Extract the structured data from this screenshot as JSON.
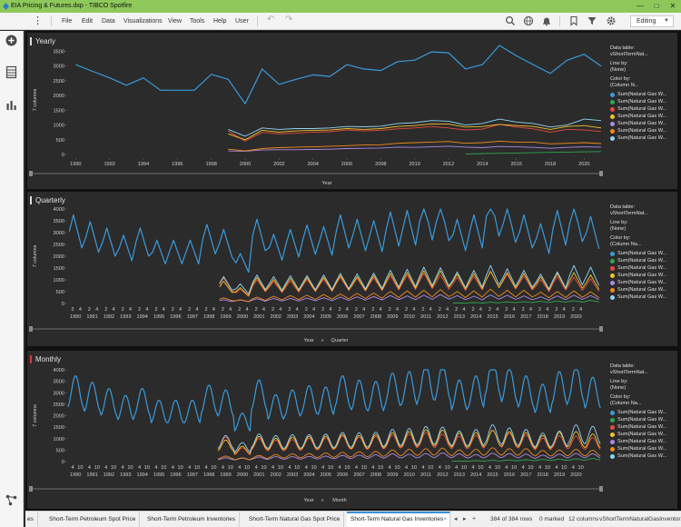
{
  "window": {
    "title": "EIA Pricing & Futures.dxp - TIBCO Spotfire",
    "controls": [
      "—",
      "□",
      "✕"
    ]
  },
  "menubar": {
    "items": [
      "File",
      "Edit",
      "Data",
      "Visualizations",
      "View",
      "Tools",
      "Help",
      "User"
    ],
    "mode": "Editing"
  },
  "colors": {
    "accent": "#3a8fd6",
    "titlebar": "#8ec85a",
    "panel_bg": "#2b2b2b",
    "series": [
      "#3a9bdc",
      "#2ea84f",
      "#e84a3a",
      "#f3c02c",
      "#a98be6",
      "#f08a1c",
      "#8dd5f5"
    ]
  },
  "legend": {
    "data_table_label": "Data table:",
    "data_table_value": "vShortTermNat...",
    "line_by_label": "Line by:",
    "line_by_value": "(None)",
    "color_by_label": "Color by:",
    "color_by_value_yearly": "(Column N...",
    "color_by_value_other": "(Column Na...",
    "series_label": "Sum(Natural Gas W..."
  },
  "panels": {
    "yearly": {
      "title": "Yearly",
      "y_axis_label": "7 columns",
      "x_axis_label": "Year"
    },
    "quarterly": {
      "title": "Quarterly",
      "y_axis_label": "7 columns",
      "x_axis_label_1": "Year",
      "x_axis_sep": "»",
      "x_axis_label_2": "Quarter"
    },
    "monthly": {
      "title": "Monthly",
      "y_axis_label": "7 columns",
      "x_axis_label_1": "Year",
      "x_axis_sep": "»",
      "x_axis_label_2": "Month"
    }
  },
  "tabs": {
    "items": [
      "es",
      "Short-Term Petroleum Spot Price",
      "Short-Term Petroleum Inventories",
      "Short-Term Natural Gas Spot Price",
      "Short-Term Natural Gas Inventories"
    ],
    "active_close": "×",
    "status_rows": "384 of 384 rows",
    "status_marked": "0 marked",
    "status_columns": "12 columns",
    "status_table": "vShortTermNaturalGasInventor..."
  },
  "chart_data": [
    {
      "type": "line",
      "title": "Yearly",
      "xlabel": "Year",
      "ylabel": "7 columns",
      "ylim": [
        0,
        3700
      ],
      "yticks": [
        0,
        500,
        1000,
        1500,
        2000,
        2500,
        3000,
        3500
      ],
      "xlim": [
        1989.5,
        2021
      ],
      "xticks": [
        1990,
        1992,
        1994,
        1996,
        1998,
        2000,
        2002,
        2004,
        2006,
        2008,
        2010,
        2012,
        2014,
        2016,
        2018,
        2020
      ],
      "series": [
        {
          "name": "Sum(Natural Gas W...",
          "x": [
            1990,
            1991,
            1992,
            1993,
            1994,
            1995,
            1996,
            1997,
            1998,
            1999,
            2000,
            2001,
            2002,
            2003,
            2004,
            2005,
            2006,
            2007,
            2008,
            2009,
            2010,
            2011,
            2012,
            2013,
            2014,
            2015,
            2016,
            2017,
            2018,
            2019,
            2020,
            2021
          ],
          "values": [
            3050,
            2820,
            2600,
            2350,
            2600,
            2180,
            2180,
            2180,
            2720,
            2550,
            1720,
            2900,
            2380,
            2550,
            2700,
            2650,
            3050,
            2900,
            2850,
            3150,
            3200,
            3480,
            3450,
            2900,
            3050,
            3700,
            3350,
            3050,
            2750,
            3200,
            3400,
            3000
          ]
        },
        {
          "name": "Sum(Natural Gas W...",
          "x": [
            2013,
            2014,
            2015,
            2016,
            2017,
            2018,
            2019,
            2020,
            2021
          ],
          "values": [
            20,
            30,
            40,
            50,
            60,
            70,
            80,
            90,
            100
          ]
        },
        {
          "name": "Sum(Natural Gas W...",
          "x": [
            1999,
            2000,
            2001,
            2002,
            2003,
            2004,
            2005,
            2006,
            2007,
            2008,
            2009,
            2010,
            2011,
            2012,
            2013,
            2014,
            2015,
            2016,
            2017,
            2018,
            2019,
            2020,
            2021
          ],
          "values": [
            800,
            450,
            750,
            700,
            720,
            760,
            770,
            830,
            800,
            820,
            870,
            900,
            950,
            900,
            830,
            860,
            1020,
            930,
            870,
            760,
            850,
            830,
            780
          ]
        },
        {
          "name": "Sum(Natural Gas W...",
          "x": [
            1999,
            2000,
            2001,
            2002,
            2003,
            2004,
            2005,
            2006,
            2007,
            2008,
            2009,
            2010,
            2011,
            2012,
            2013,
            2014,
            2015,
            2016,
            2017,
            2018,
            2019,
            2020,
            2021
          ],
          "values": [
            700,
            500,
            820,
            760,
            800,
            820,
            830,
            880,
            850,
            880,
            950,
            980,
            1040,
            1030,
            930,
            950,
            1020,
            980,
            950,
            850,
            950,
            980,
            900
          ]
        },
        {
          "name": "Sum(Natural Gas W...",
          "x": [
            1999,
            2000,
            2001,
            2002,
            2003,
            2004,
            2005,
            2006,
            2007,
            2008,
            2009,
            2010,
            2011,
            2012,
            2013,
            2014,
            2015,
            2016,
            2017,
            2018,
            2019,
            2020,
            2021
          ],
          "values": [
            120,
            110,
            150,
            160,
            160,
            170,
            180,
            200,
            210,
            220,
            250,
            240,
            260,
            280,
            250,
            230,
            270,
            260,
            240,
            210,
            240,
            260,
            250
          ]
        },
        {
          "name": "Sum(Natural Gas W...",
          "x": [
            1999,
            2000,
            2001,
            2002,
            2003,
            2004,
            2005,
            2006,
            2007,
            2008,
            2009,
            2010,
            2011,
            2012,
            2013,
            2014,
            2015,
            2016,
            2017,
            2018,
            2019,
            2020,
            2021
          ],
          "values": [
            180,
            120,
            200,
            230,
            250,
            260,
            280,
            300,
            320,
            330,
            380,
            400,
            420,
            440,
            380,
            400,
            450,
            420,
            420,
            360,
            380,
            400,
            370
          ]
        },
        {
          "name": "Sum(Natural Gas W...",
          "x": [
            1999,
            2000,
            2001,
            2002,
            2003,
            2004,
            2005,
            2006,
            2007,
            2008,
            2009,
            2010,
            2011,
            2012,
            2013,
            2014,
            2015,
            2016,
            2017,
            2018,
            2019,
            2020,
            2021
          ],
          "values": [
            850,
            620,
            900,
            850,
            880,
            880,
            900,
            950,
            940,
            960,
            1050,
            1080,
            1150,
            1130,
            1000,
            1050,
            1200,
            1100,
            1050,
            930,
            1000,
            1200,
            1150
          ]
        }
      ]
    },
    {
      "type": "line",
      "title": "Quarterly",
      "xlabel": "Year » Quarter",
      "ylabel": "7 columns",
      "ylim": [
        0,
        4000
      ],
      "yticks": [
        0,
        500,
        1000,
        1500,
        2000,
        2500,
        3000,
        3500,
        4000
      ],
      "year_labels": [
        "1990",
        "1991",
        "1992",
        "1993",
        "1994",
        "1995",
        "1996",
        "1997",
        "1998",
        "1999",
        "2000",
        "2001",
        "2002",
        "2003",
        "2004",
        "2005",
        "2006",
        "2007",
        "2008",
        "2009",
        "2010",
        "2011",
        "2012",
        "2013",
        "2014",
        "2015",
        "2016",
        "2017",
        "2018",
        "2019",
        "2020"
      ],
      "sub_tick_labels": [
        "2",
        "4"
      ],
      "first_year": 1990,
      "last_year": 2021,
      "series_model": "seasonal quarterly swings around the yearly totals: Q1 low, Q4 high"
    },
    {
      "type": "line",
      "title": "Monthly",
      "xlabel": "Year » Month",
      "ylabel": "7 columns",
      "ylim": [
        0,
        4000
      ],
      "yticks": [
        0,
        500,
        1000,
        1500,
        2000,
        2500,
        3000,
        3500,
        4000
      ],
      "year_labels": [
        "1990",
        "1991",
        "1992",
        "1993",
        "1994",
        "1995",
        "1996",
        "1997",
        "1998",
        "1999",
        "2000",
        "2001",
        "2002",
        "2003",
        "2004",
        "2005",
        "2006",
        "2007",
        "2008",
        "2009",
        "2010",
        "2011",
        "2012",
        "2013",
        "2014",
        "2015",
        "2016",
        "2017",
        "2018",
        "2019",
        "2020"
      ],
      "sub_tick_labels": [
        "4",
        "10"
      ],
      "first_year": 1990,
      "last_year": 2021,
      "series_model": "seasonal monthly swings around the yearly totals: spring low, autumn high"
    }
  ]
}
